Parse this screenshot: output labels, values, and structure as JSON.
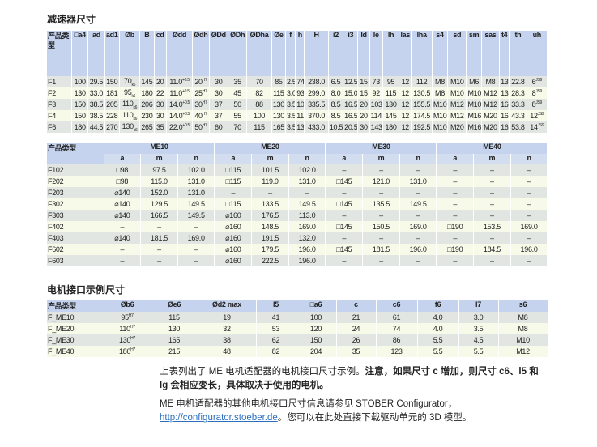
{
  "section1": {
    "title": "减速器尺寸",
    "header": [
      "产品类型",
      "□a4",
      "ad",
      "ad1",
      "Øb",
      "B",
      "cd",
      "Ødd",
      "Ødh",
      "ØDd",
      "ØDh",
      "ØDha",
      "Øe",
      "f",
      "h",
      "H",
      "i2",
      "i3",
      "ld",
      "le",
      "lh",
      "las",
      "lha",
      "s4",
      "sd",
      "sm",
      "sas",
      "t4",
      "th",
      "uh"
    ],
    "rows": [
      [
        "F1",
        "100",
        "29.5",
        "150",
        {
          "v": "70",
          "sub": "k6"
        },
        "145",
        "20",
        {
          "v": "11.0",
          "sup": "+0.5"
        },
        {
          "v": "20",
          "sup": "H7"
        },
        "30",
        "35",
        "70",
        "85",
        "2.5",
        "74",
        "238.0",
        "6.5",
        "12.5",
        "15",
        "73",
        "95",
        "12",
        "112",
        "M8",
        "M10",
        "M6",
        "M8",
        "13",
        "22.8",
        {
          "v": "6",
          "sup": "JS9"
        }
      ],
      [
        "F2",
        "130",
        "33.0",
        "181",
        {
          "v": "95",
          "sub": "k6"
        },
        "180",
        "22",
        {
          "v": "11.0",
          "sup": "+0.5"
        },
        {
          "v": "25",
          "sup": "H7"
        },
        "30",
        "45",
        "82",
        "115",
        "3.0",
        "93",
        "299.0",
        "8.0",
        "15.0",
        "15",
        "92",
        "115",
        "12",
        "130.5",
        "M8",
        "M10",
        "M10",
        "M12",
        "13",
        "28.3",
        {
          "v": "8",
          "sup": "JS9"
        }
      ],
      [
        "F3",
        "150",
        "38.5",
        "205",
        {
          "v": "110",
          "sub": "k6"
        },
        "206",
        "30",
        {
          "v": "14.0",
          "sup": "+0.5"
        },
        {
          "v": "30",
          "sup": "H7"
        },
        "37",
        "50",
        "88",
        "130",
        "3.5",
        "106",
        "335.5",
        "8.5",
        "16.5",
        "20",
        "103",
        "130",
        "12",
        "155.5",
        "M10",
        "M12",
        "M10",
        "M12",
        "16",
        "33.3",
        {
          "v": "8",
          "sup": "JS9"
        }
      ],
      [
        "F4",
        "150",
        "38.5",
        "228",
        {
          "v": "110",
          "sub": "k6"
        },
        "230",
        "30",
        {
          "v": "14.0",
          "sup": "+0.5"
        },
        {
          "v": "40",
          "sup": "H7"
        },
        "37",
        "55",
        "100",
        "130",
        "3.5",
        "116",
        "370.0",
        "8.5",
        "16.5",
        "20",
        "114",
        "145",
        "12",
        "174.5",
        "M10",
        "M12",
        "M16",
        "M20",
        "16",
        "43.3",
        {
          "v": "12",
          "sup": "JS9"
        }
      ],
      [
        "F6",
        "180",
        "44.5",
        "270",
        {
          "v": "130",
          "sub": "k6"
        },
        "265",
        "35",
        {
          "v": "22.0",
          "sup": "+0.5"
        },
        {
          "v": "50",
          "sup": "H7"
        },
        "60",
        "70",
        "115",
        "165",
        "3.5",
        "137",
        "433.0",
        "10.5",
        "20.5",
        "30",
        "143",
        "180",
        "12",
        "192.5",
        "M10",
        "M20",
        "M16",
        "M20",
        "16",
        "53.8",
        {
          "v": "14",
          "sup": "JS9"
        }
      ]
    ]
  },
  "section2": {
    "groups": [
      "产品类型",
      "ME10",
      "ME20",
      "ME30",
      "ME40"
    ],
    "subheader": [
      "a",
      "m",
      "n"
    ],
    "rows": [
      [
        "F102",
        "□98",
        "97.5",
        "102.0",
        "□115",
        "101.5",
        "102.0",
        "–",
        "–",
        "–",
        "–",
        "–",
        "–"
      ],
      [
        "F202",
        "□98",
        "115.0",
        "131.0",
        "□115",
        "119.0",
        "131.0",
        "□145",
        "121.0",
        "131.0",
        "–",
        "–",
        "–"
      ],
      [
        "F203",
        "⌀140",
        "152.0",
        "131.0",
        "–",
        "–",
        "–",
        "–",
        "–",
        "–",
        "–",
        "–",
        "–"
      ],
      [
        "F302",
        "⌀140",
        "129.5",
        "149.5",
        "□115",
        "133.5",
        "149.5",
        "□145",
        "135.5",
        "149.5",
        "–",
        "–",
        "–"
      ],
      [
        "F303",
        "⌀140",
        "166.5",
        "149.5",
        "⌀160",
        "176.5",
        "113.0",
        "–",
        "–",
        "–",
        "–",
        "–",
        "–"
      ],
      [
        "F402",
        "–",
        "–",
        "–",
        "⌀160",
        "148.5",
        "169.0",
        "□145",
        "150.5",
        "169.0",
        "□190",
        "153.5",
        "169.0"
      ],
      [
        "F403",
        "⌀140",
        "181.5",
        "169.0",
        "⌀160",
        "191.5",
        "132.0",
        "–",
        "–",
        "–",
        "–",
        "–",
        "–"
      ],
      [
        "F602",
        "–",
        "–",
        "–",
        "⌀160",
        "179.5",
        "196.0",
        "□145",
        "181.5",
        "196.0",
        "□190",
        "184.5",
        "196.0"
      ],
      [
        "F603",
        "–",
        "–",
        "–",
        "⌀160",
        "222.5",
        "196.0",
        "–",
        "–",
        "–",
        "–",
        "–",
        "–"
      ]
    ]
  },
  "section3": {
    "title": "电机接口示例尺寸",
    "header": [
      "产品类型",
      "Øb6",
      "Øe6",
      "Ød2 max",
      "l5",
      "□a6",
      "c",
      "c6",
      "f6",
      "l7",
      "s6"
    ],
    "rows": [
      [
        "F_ME10",
        {
          "v": "95",
          "sup": "H7"
        },
        "115",
        "19",
        "41",
        "100",
        "21",
        "61",
        "4.0",
        "3.0",
        "M8"
      ],
      [
        "F_ME20",
        {
          "v": "110",
          "sup": "H7"
        },
        "130",
        "32",
        "53",
        "120",
        "24",
        "74",
        "4.0",
        "3.5",
        "M8"
      ],
      [
        "F_ME30",
        {
          "v": "130",
          "sup": "H7"
        },
        "165",
        "38",
        "62",
        "150",
        "26",
        "86",
        "5.5",
        "4.5",
        "M10"
      ],
      [
        "F_ME40",
        {
          "v": "180",
          "sup": "H7"
        },
        "215",
        "48",
        "82",
        "204",
        "35",
        "123",
        "5.5",
        "5.5",
        "M12"
      ]
    ]
  },
  "note": {
    "p1_normal": "上表列出了 ME 电机适配器的电机接口尺寸示例。",
    "p1_bold": "注意，如果尺寸 c 增加，则尺寸 c6、l5 和 lg 会相应变长，具体取决于使用的电机。",
    "p2_before": "ME 电机适配器的其他电机接口尺寸信息请参见 STOBER Configurator，",
    "p2_link": "http://configurator.stoeber.de",
    "p2_after": "。您可以在此处直接下载驱动单元的 3D 模型。"
  }
}
